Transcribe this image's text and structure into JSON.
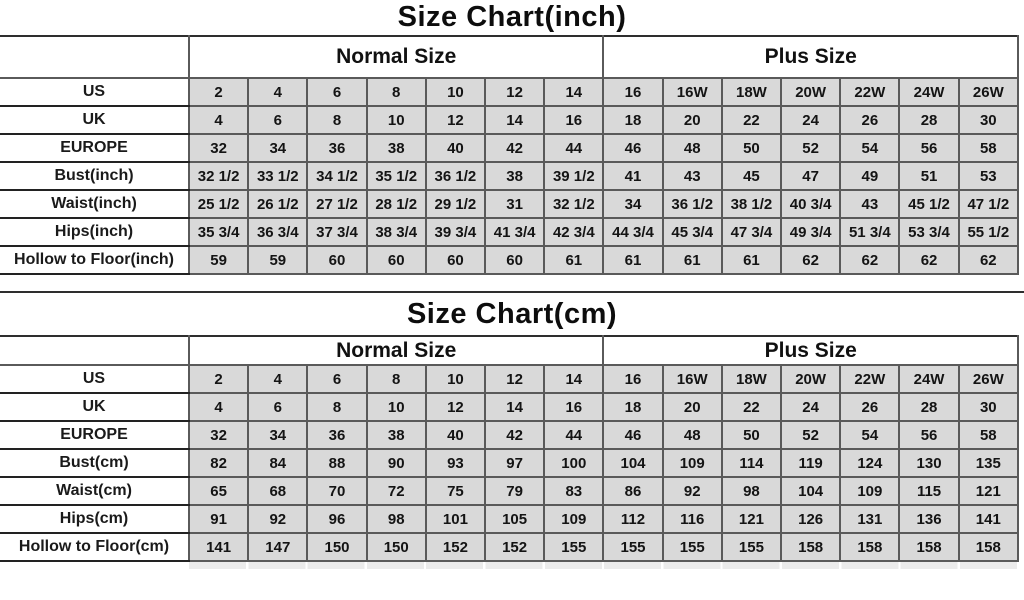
{
  "colors": {
    "cell_fill": "#d9d9d9",
    "grid_border": "#5a5a5a",
    "dark_line": "#2e2e2e",
    "text": "#1a1a1a",
    "background": "#ffffff"
  },
  "chart_data": [
    {
      "type": "table",
      "title": "Size Chart(inch)",
      "group_headers": [
        "Normal Size",
        "Plus Size"
      ],
      "normal_size_span": 7,
      "plus_size_span": 7,
      "rows": [
        {
          "label": "US",
          "values": [
            "2",
            "4",
            "6",
            "8",
            "10",
            "12",
            "14",
            "16",
            "16W",
            "18W",
            "20W",
            "22W",
            "24W",
            "26W"
          ]
        },
        {
          "label": "UK",
          "values": [
            "4",
            "6",
            "8",
            "10",
            "12",
            "14",
            "16",
            "18",
            "20",
            "22",
            "24",
            "26",
            "28",
            "30"
          ]
        },
        {
          "label": "EUROPE",
          "values": [
            "32",
            "34",
            "36",
            "38",
            "40",
            "42",
            "44",
            "46",
            "48",
            "50",
            "52",
            "54",
            "56",
            "58"
          ]
        },
        {
          "label": "Bust(inch)",
          "values": [
            "32 1/2",
            "33 1/2",
            "34 1/2",
            "35 1/2",
            "36 1/2",
            "38",
            "39 1/2",
            "41",
            "43",
            "45",
            "47",
            "49",
            "51",
            "53"
          ]
        },
        {
          "label": "Waist(inch)",
          "values": [
            "25 1/2",
            "26 1/2",
            "27 1/2",
            "28 1/2",
            "29 1/2",
            "31",
            "32 1/2",
            "34",
            "36 1/2",
            "38 1/2",
            "40 3/4",
            "43",
            "45 1/2",
            "47 1/2"
          ]
        },
        {
          "label": "Hips(inch)",
          "values": [
            "35 3/4",
            "36 3/4",
            "37 3/4",
            "38 3/4",
            "39 3/4",
            "41 3/4",
            "42 3/4",
            "44 3/4",
            "45 3/4",
            "47 3/4",
            "49 3/4",
            "51 3/4",
            "53 3/4",
            "55 1/2"
          ]
        },
        {
          "label": "Hollow to Floor(inch)",
          "values": [
            "59",
            "59",
            "60",
            "60",
            "60",
            "60",
            "61",
            "61",
            "61",
            "61",
            "62",
            "62",
            "62",
            "62"
          ]
        }
      ]
    },
    {
      "type": "table",
      "title": "Size Chart(cm)",
      "group_headers": [
        "Normal Size",
        "Plus Size"
      ],
      "normal_size_span": 7,
      "plus_size_span": 7,
      "rows": [
        {
          "label": "US",
          "values": [
            "2",
            "4",
            "6",
            "8",
            "10",
            "12",
            "14",
            "16",
            "16W",
            "18W",
            "20W",
            "22W",
            "24W",
            "26W"
          ]
        },
        {
          "label": "UK",
          "values": [
            "4",
            "6",
            "8",
            "10",
            "12",
            "14",
            "16",
            "18",
            "20",
            "22",
            "24",
            "26",
            "28",
            "30"
          ]
        },
        {
          "label": "EUROPE",
          "values": [
            "32",
            "34",
            "36",
            "38",
            "40",
            "42",
            "44",
            "46",
            "48",
            "50",
            "52",
            "54",
            "56",
            "58"
          ]
        },
        {
          "label": "Bust(cm)",
          "values": [
            "82",
            "84",
            "88",
            "90",
            "93",
            "97",
            "100",
            "104",
            "109",
            "114",
            "119",
            "124",
            "130",
            "135"
          ]
        },
        {
          "label": "Waist(cm)",
          "values": [
            "65",
            "68",
            "70",
            "72",
            "75",
            "79",
            "83",
            "86",
            "92",
            "98",
            "104",
            "109",
            "115",
            "121"
          ]
        },
        {
          "label": "Hips(cm)",
          "values": [
            "91",
            "92",
            "96",
            "98",
            "101",
            "105",
            "109",
            "112",
            "116",
            "121",
            "126",
            "131",
            "136",
            "141"
          ]
        },
        {
          "label": "Hollow to Floor(cm)",
          "values": [
            "141",
            "147",
            "150",
            "150",
            "152",
            "152",
            "155",
            "155",
            "155",
            "155",
            "158",
            "158",
            "158",
            "158"
          ]
        }
      ]
    }
  ]
}
